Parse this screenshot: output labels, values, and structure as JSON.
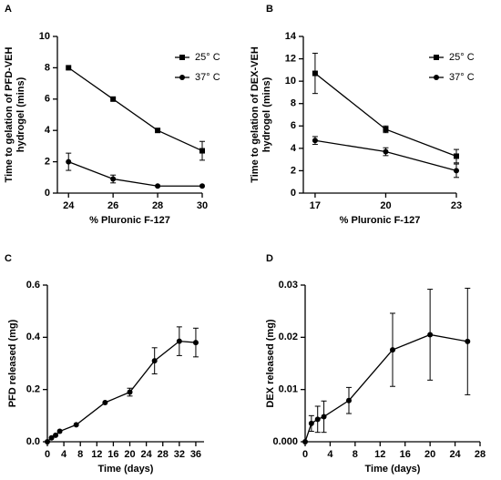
{
  "chart_data": [
    {
      "type": "line",
      "panel_label": "A",
      "x_label": "% Pluronic F-127",
      "y_label": [
        "Time to gelation of PFD-VEH",
        "hydrogel (mins)"
      ],
      "x": [
        24,
        26,
        28,
        30
      ],
      "xlim": [
        23.5,
        30
      ],
      "xticks": [
        24,
        26,
        28,
        30
      ],
      "ylim": [
        0,
        10
      ],
      "yticks": [
        0,
        2,
        4,
        6,
        8,
        10
      ],
      "series": [
        {
          "name": "25° C",
          "marker": "square",
          "color": "#000000",
          "values": [
            8,
            6,
            4,
            2.7
          ],
          "errors": [
            null,
            null,
            null,
            0.6
          ]
        },
        {
          "name": "37° C",
          "marker": "circle",
          "color": "#000000",
          "values": [
            2,
            0.9,
            0.45,
            0.45
          ],
          "errors": [
            0.55,
            0.25,
            null,
            null
          ]
        }
      ],
      "legend": "upper right"
    },
    {
      "type": "line",
      "panel_label": "B",
      "x_label": "% Pluronic F-127",
      "y_label": [
        "Time to gelation of DEX-VEH",
        "hydrogel (mins)"
      ],
      "x": [
        17,
        20,
        23
      ],
      "xlim": [
        16.5,
        23
      ],
      "xticks": [
        17,
        20,
        23
      ],
      "ylim": [
        0,
        14
      ],
      "yticks": [
        0,
        2,
        4,
        6,
        8,
        10,
        12,
        14
      ],
      "series": [
        {
          "name": "25° C",
          "marker": "square",
          "color": "#000000",
          "values": [
            10.7,
            5.7,
            3.3
          ],
          "errors": [
            1.8,
            0.3,
            0.6
          ]
        },
        {
          "name": "37° C",
          "marker": "circle",
          "color": "#000000",
          "values": [
            4.7,
            3.7,
            2
          ],
          "errors": [
            0.35,
            0.35,
            0.6
          ]
        }
      ],
      "legend": "upper right"
    },
    {
      "type": "line",
      "panel_label": "C",
      "x_label": "Time (days)",
      "y_label": [
        "PFD released (mg)"
      ],
      "x": [
        0,
        1,
        2,
        3,
        7,
        14,
        20,
        26,
        32,
        36
      ],
      "xlim": [
        0,
        38
      ],
      "xticks": [
        0,
        4,
        8,
        12,
        16,
        20,
        24,
        28,
        32,
        36
      ],
      "ylim": [
        0,
        0.6
      ],
      "yticks": [
        {
          "value": 0,
          "label": "0.0"
        },
        0.2,
        0.4,
        0.6
      ],
      "series": [
        {
          "marker": "circle",
          "color": "#000000",
          "values": [
            0,
            0.015,
            0.025,
            0.04,
            0.065,
            0.15,
            0.19,
            0.31,
            0.385,
            0.38
          ],
          "errors": [
            null,
            null,
            null,
            null,
            null,
            null,
            0.015,
            0.05,
            0.055,
            0.055
          ]
        }
      ]
    },
    {
      "type": "line",
      "panel_label": "D",
      "x_label": "Time (days)",
      "y_label": [
        "DEX released (mg)"
      ],
      "x": [
        0,
        1,
        2,
        3,
        7,
        14,
        20,
        26
      ],
      "xlim": [
        0,
        28
      ],
      "xticks": [
        0,
        4,
        8,
        12,
        16,
        20,
        24,
        28
      ],
      "ylim": [
        0,
        0.03
      ],
      "yticks": [
        {
          "value": 0,
          "label": "0.000"
        },
        0.01,
        0.02,
        0.03
      ],
      "series": [
        {
          "marker": "circle",
          "color": "#000000",
          "values": [
            0,
            0.0035,
            0.0043,
            0.0048,
            0.0079,
            0.0176,
            0.0205,
            0.0192
          ],
          "errors": [
            null,
            0.0015,
            0.0025,
            0.003,
            0.0025,
            0.007,
            0.0087,
            0.0102
          ]
        }
      ]
    }
  ]
}
